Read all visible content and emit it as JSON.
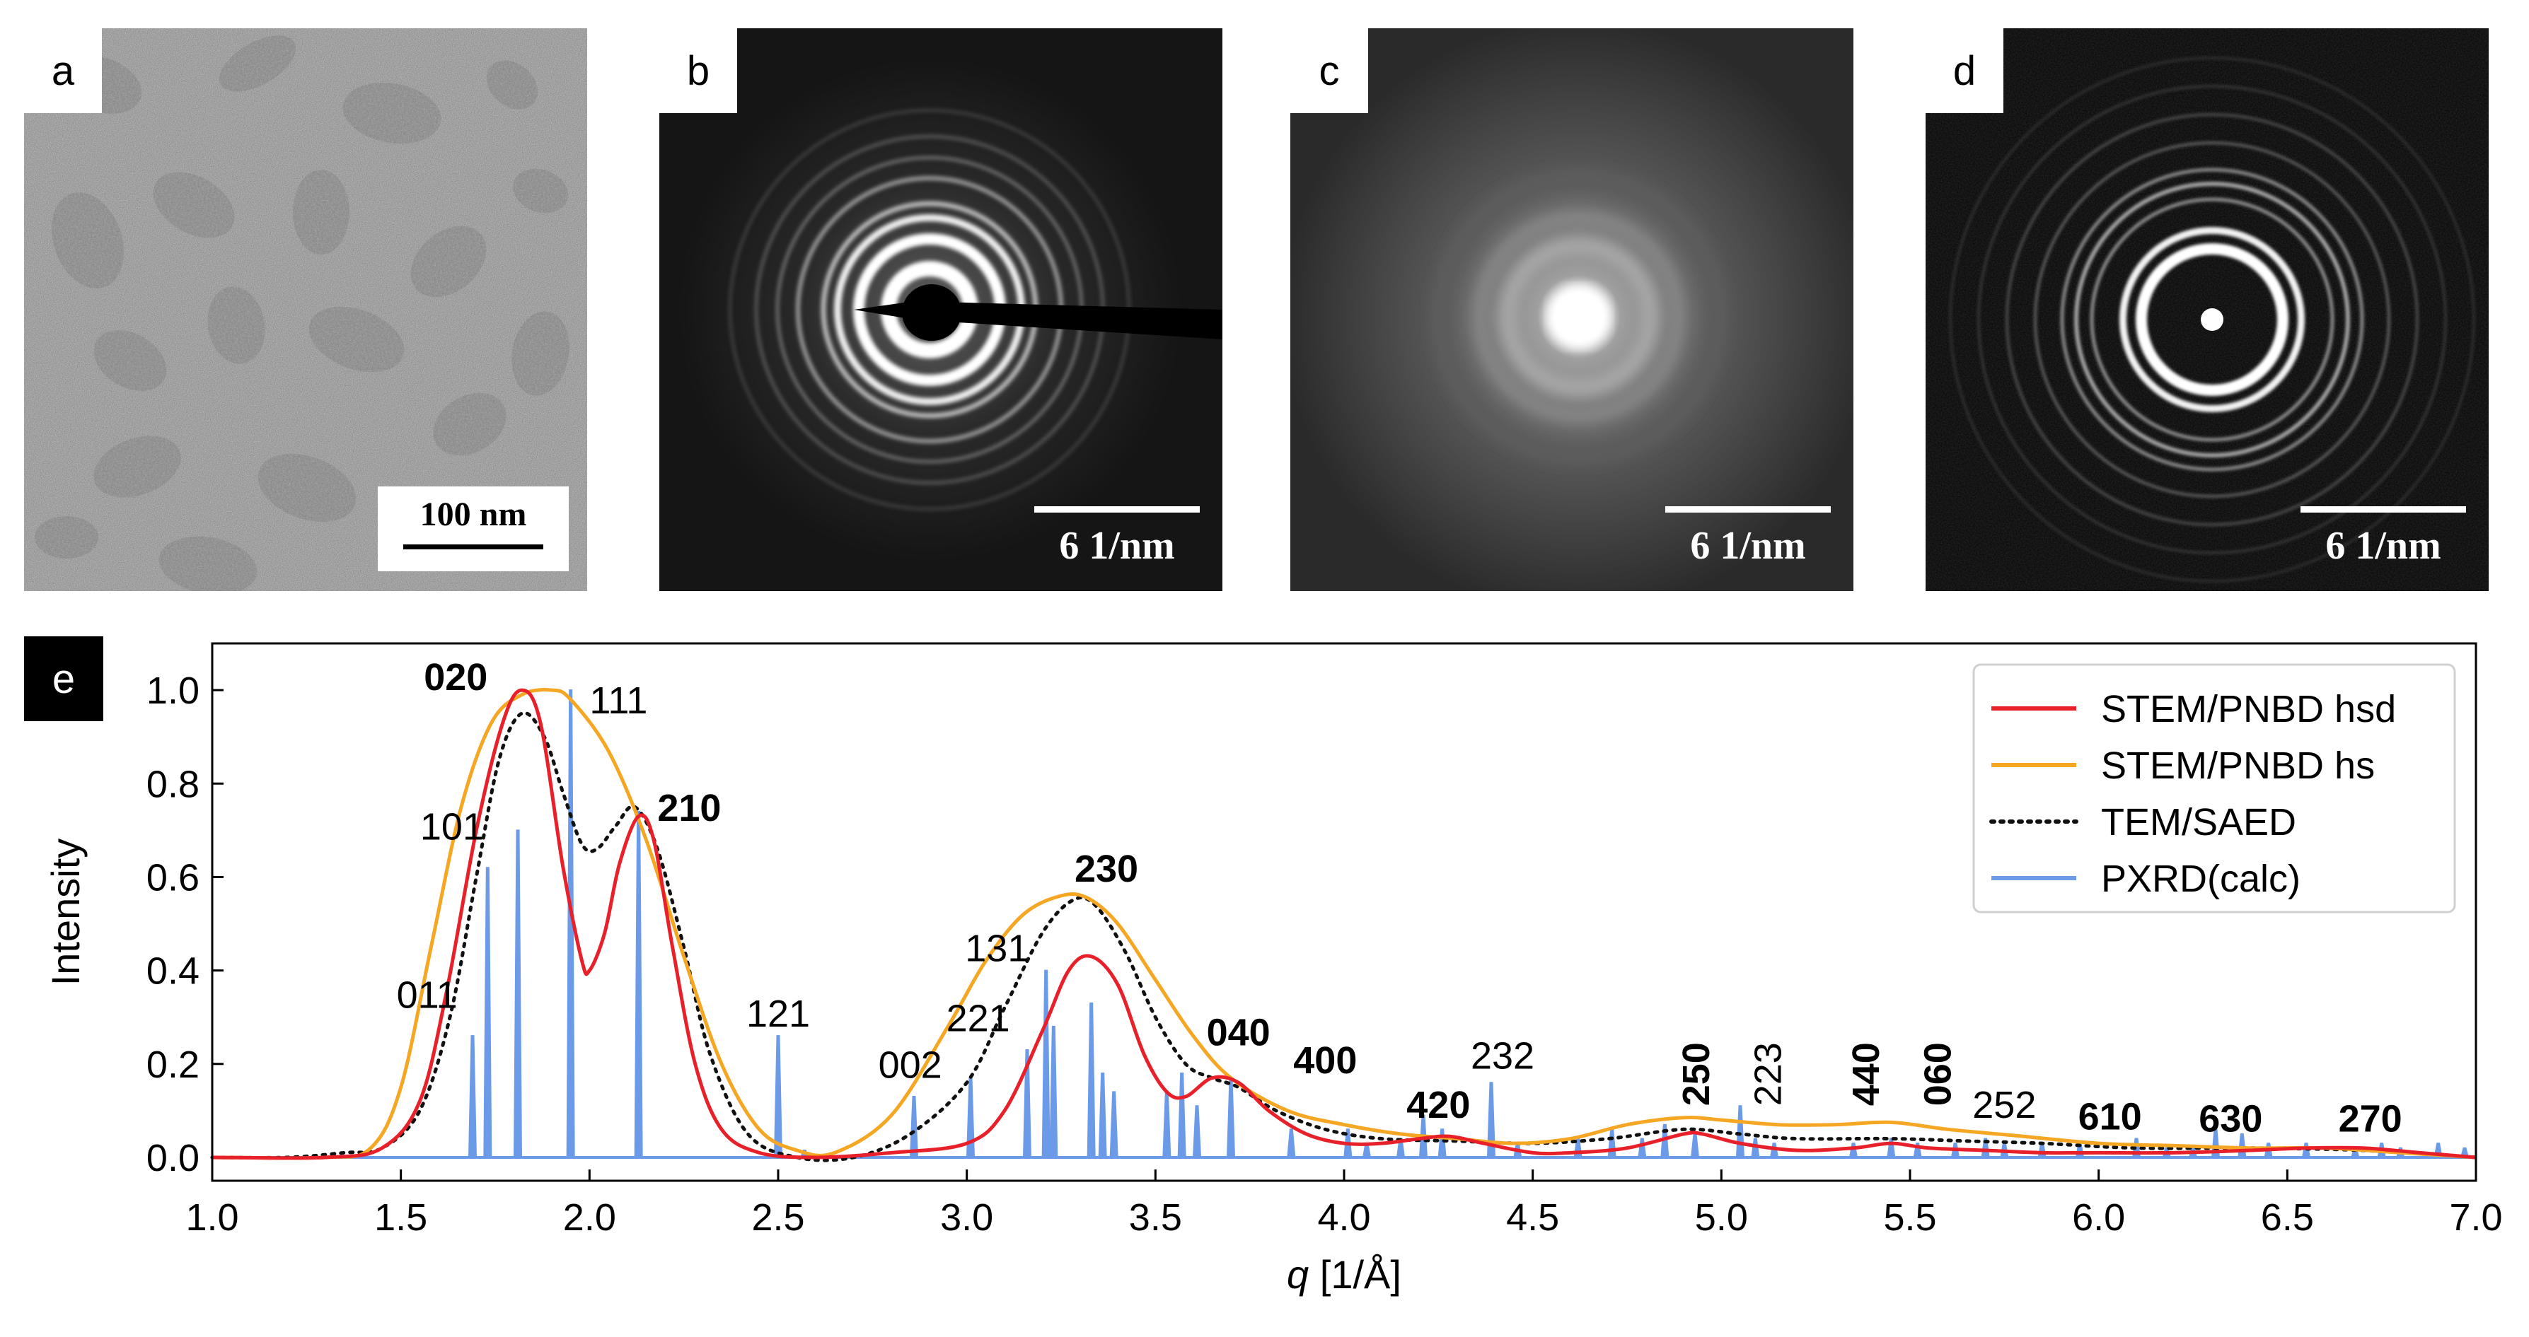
{
  "panels": {
    "a": {
      "label": "a",
      "scalebar": "100 nm"
    },
    "b": {
      "label": "b",
      "scalebar": "6 1/nm"
    },
    "c": {
      "label": "c",
      "scalebar": "6 1/nm"
    },
    "d": {
      "label": "d",
      "scalebar": "6 1/nm"
    },
    "e": {
      "label": "e"
    }
  },
  "chart_data": {
    "type": "line",
    "xlabel_italic": "q",
    "xlabel_rest": " [1/Å]",
    "ylabel": "Intensity",
    "xlim": [
      1.0,
      7.0
    ],
    "ylim": [
      -0.05,
      1.1
    ],
    "xticks": [
      "1.0",
      "1.5",
      "2.0",
      "2.5",
      "3.0",
      "3.5",
      "4.0",
      "4.5",
      "5.0",
      "5.5",
      "6.0",
      "6.5",
      "7.0"
    ],
    "yticks": [
      "0.0",
      "0.2",
      "0.4",
      "0.6",
      "0.8",
      "1.0"
    ],
    "series": [
      {
        "name": "STEM/PNBD hsd",
        "color": "#e8202a",
        "style": "solid",
        "points": [
          [
            1.0,
            0.0
          ],
          [
            1.3,
            0.0
          ],
          [
            1.45,
            0.02
          ],
          [
            1.55,
            0.12
          ],
          [
            1.62,
            0.35
          ],
          [
            1.7,
            0.7
          ],
          [
            1.77,
            0.93
          ],
          [
            1.82,
            1.0
          ],
          [
            1.87,
            0.93
          ],
          [
            1.93,
            0.62
          ],
          [
            1.98,
            0.42
          ],
          [
            2.0,
            0.4
          ],
          [
            2.04,
            0.48
          ],
          [
            2.08,
            0.63
          ],
          [
            2.13,
            0.73
          ],
          [
            2.17,
            0.68
          ],
          [
            2.22,
            0.45
          ],
          [
            2.28,
            0.2
          ],
          [
            2.35,
            0.06
          ],
          [
            2.45,
            0.01
          ],
          [
            2.6,
            0.0
          ],
          [
            2.8,
            0.01
          ],
          [
            3.0,
            0.03
          ],
          [
            3.1,
            0.1
          ],
          [
            3.2,
            0.27
          ],
          [
            3.27,
            0.4
          ],
          [
            3.33,
            0.43
          ],
          [
            3.4,
            0.37
          ],
          [
            3.47,
            0.22
          ],
          [
            3.53,
            0.14
          ],
          [
            3.58,
            0.13
          ],
          [
            3.65,
            0.17
          ],
          [
            3.72,
            0.16
          ],
          [
            3.8,
            0.1
          ],
          [
            3.9,
            0.05
          ],
          [
            4.0,
            0.03
          ],
          [
            4.1,
            0.03
          ],
          [
            4.2,
            0.04
          ],
          [
            4.28,
            0.045
          ],
          [
            4.37,
            0.03
          ],
          [
            4.5,
            0.01
          ],
          [
            4.6,
            0.01
          ],
          [
            4.75,
            0.02
          ],
          [
            4.9,
            0.05
          ],
          [
            4.95,
            0.05
          ],
          [
            5.05,
            0.03
          ],
          [
            5.2,
            0.015
          ],
          [
            5.35,
            0.02
          ],
          [
            5.45,
            0.03
          ],
          [
            5.55,
            0.02
          ],
          [
            5.7,
            0.015
          ],
          [
            5.85,
            0.01
          ],
          [
            6.0,
            0.01
          ],
          [
            6.2,
            0.01
          ],
          [
            6.4,
            0.015
          ],
          [
            6.55,
            0.02
          ],
          [
            6.7,
            0.02
          ],
          [
            6.85,
            0.01
          ],
          [
            7.0,
            0.0
          ]
        ]
      },
      {
        "name": "STEM/PNBD hs",
        "color": "#f5a623",
        "style": "solid",
        "points": [
          [
            1.0,
            0.0
          ],
          [
            1.3,
            0.0
          ],
          [
            1.42,
            0.02
          ],
          [
            1.5,
            0.15
          ],
          [
            1.58,
            0.45
          ],
          [
            1.66,
            0.75
          ],
          [
            1.74,
            0.93
          ],
          [
            1.82,
            0.99
          ],
          [
            1.9,
            1.0
          ],
          [
            1.95,
            0.98
          ],
          [
            2.05,
            0.87
          ],
          [
            2.15,
            0.68
          ],
          [
            2.25,
            0.43
          ],
          [
            2.35,
            0.2
          ],
          [
            2.45,
            0.06
          ],
          [
            2.55,
            0.015
          ],
          [
            2.65,
            0.01
          ],
          [
            2.8,
            0.09
          ],
          [
            2.95,
            0.28
          ],
          [
            3.05,
            0.42
          ],
          [
            3.15,
            0.52
          ],
          [
            3.25,
            0.56
          ],
          [
            3.32,
            0.555
          ],
          [
            3.4,
            0.5
          ],
          [
            3.5,
            0.38
          ],
          [
            3.6,
            0.26
          ],
          [
            3.7,
            0.17
          ],
          [
            3.85,
            0.1
          ],
          [
            4.0,
            0.07
          ],
          [
            4.15,
            0.05
          ],
          [
            4.3,
            0.04
          ],
          [
            4.45,
            0.03
          ],
          [
            4.6,
            0.04
          ],
          [
            4.75,
            0.07
          ],
          [
            4.9,
            0.085
          ],
          [
            5.0,
            0.08
          ],
          [
            5.15,
            0.07
          ],
          [
            5.3,
            0.07
          ],
          [
            5.45,
            0.075
          ],
          [
            5.6,
            0.06
          ],
          [
            5.8,
            0.045
          ],
          [
            6.0,
            0.03
          ],
          [
            6.2,
            0.025
          ],
          [
            6.4,
            0.02
          ],
          [
            6.6,
            0.02
          ],
          [
            6.8,
            0.01
          ],
          [
            7.0,
            0.0
          ]
        ]
      },
      {
        "name": "TEM/SAED",
        "color": "#111111",
        "style": "dotted",
        "points": [
          [
            1.0,
            0.0
          ],
          [
            1.2,
            0.0
          ],
          [
            1.35,
            0.01
          ],
          [
            1.45,
            0.02
          ],
          [
            1.55,
            0.1
          ],
          [
            1.63,
            0.3
          ],
          [
            1.7,
            0.6
          ],
          [
            1.76,
            0.85
          ],
          [
            1.82,
            0.95
          ],
          [
            1.88,
            0.9
          ],
          [
            1.93,
            0.78
          ],
          [
            1.98,
            0.67
          ],
          [
            2.02,
            0.66
          ],
          [
            2.07,
            0.71
          ],
          [
            2.12,
            0.75
          ],
          [
            2.18,
            0.66
          ],
          [
            2.25,
            0.45
          ],
          [
            2.32,
            0.22
          ],
          [
            2.42,
            0.05
          ],
          [
            2.55,
            0.0
          ],
          [
            2.7,
            0.0
          ],
          [
            2.85,
            0.05
          ],
          [
            3.0,
            0.16
          ],
          [
            3.1,
            0.32
          ],
          [
            3.2,
            0.48
          ],
          [
            3.28,
            0.55
          ],
          [
            3.34,
            0.54
          ],
          [
            3.42,
            0.44
          ],
          [
            3.5,
            0.3
          ],
          [
            3.58,
            0.2
          ],
          [
            3.65,
            0.17
          ],
          [
            3.72,
            0.15
          ],
          [
            3.82,
            0.1
          ],
          [
            3.95,
            0.06
          ],
          [
            4.1,
            0.04
          ],
          [
            4.3,
            0.035
          ],
          [
            4.5,
            0.03
          ],
          [
            4.7,
            0.04
          ],
          [
            4.9,
            0.06
          ],
          [
            5.05,
            0.05
          ],
          [
            5.2,
            0.04
          ],
          [
            5.45,
            0.04
          ],
          [
            5.65,
            0.035
          ],
          [
            5.85,
            0.03
          ],
          [
            6.1,
            0.02
          ],
          [
            6.4,
            0.02
          ],
          [
            6.7,
            0.015
          ],
          [
            7.0,
            0.0
          ]
        ]
      },
      {
        "name": "PXRD(calc)",
        "color": "#6b9ae8",
        "style": "solid",
        "peaks": [
          [
            1.69,
            0.26
          ],
          [
            1.73,
            0.62
          ],
          [
            1.81,
            0.7
          ],
          [
            1.95,
            1.0
          ],
          [
            2.13,
            0.74
          ],
          [
            2.5,
            0.26
          ],
          [
            2.57,
            0.015
          ],
          [
            2.86,
            0.13
          ],
          [
            3.01,
            0.17
          ],
          [
            3.16,
            0.23
          ],
          [
            3.21,
            0.4
          ],
          [
            3.23,
            0.28
          ],
          [
            3.33,
            0.33
          ],
          [
            3.36,
            0.18
          ],
          [
            3.39,
            0.14
          ],
          [
            3.53,
            0.14
          ],
          [
            3.57,
            0.18
          ],
          [
            3.61,
            0.11
          ],
          [
            3.7,
            0.17
          ],
          [
            3.86,
            0.06
          ],
          [
            4.01,
            0.06
          ],
          [
            4.06,
            0.03
          ],
          [
            4.15,
            0.04
          ],
          [
            4.21,
            0.09
          ],
          [
            4.26,
            0.06
          ],
          [
            4.39,
            0.16
          ],
          [
            4.46,
            0.03
          ],
          [
            4.62,
            0.04
          ],
          [
            4.71,
            0.06
          ],
          [
            4.79,
            0.04
          ],
          [
            4.85,
            0.07
          ],
          [
            4.93,
            0.05
          ],
          [
            5.05,
            0.11
          ],
          [
            5.09,
            0.04
          ],
          [
            5.14,
            0.03
          ],
          [
            5.35,
            0.03
          ],
          [
            5.45,
            0.04
          ],
          [
            5.52,
            0.03
          ],
          [
            5.62,
            0.03
          ],
          [
            5.7,
            0.04
          ],
          [
            5.75,
            0.03
          ],
          [
            5.85,
            0.03
          ],
          [
            5.95,
            0.03
          ],
          [
            6.1,
            0.04
          ],
          [
            6.18,
            0.02
          ],
          [
            6.25,
            0.02
          ],
          [
            6.31,
            0.06
          ],
          [
            6.38,
            0.05
          ],
          [
            6.45,
            0.03
          ],
          [
            6.55,
            0.03
          ],
          [
            6.68,
            0.02
          ],
          [
            6.75,
            0.03
          ],
          [
            6.8,
            0.02
          ],
          [
            6.9,
            0.03
          ],
          [
            6.97,
            0.02
          ]
        ]
      }
    ],
    "annotations": [
      {
        "text": "020",
        "bold": true,
        "x": 1.73,
        "y": 1.0,
        "anchor": "end"
      },
      {
        "text": "111",
        "bold": false,
        "x": 2.0,
        "y": 0.95,
        "anchor": "start"
      },
      {
        "text": "101",
        "bold": false,
        "x": 1.72,
        "y": 0.68,
        "anchor": "end"
      },
      {
        "text": "210",
        "bold": true,
        "x": 2.18,
        "y": 0.72,
        "anchor": "start"
      },
      {
        "text": "011",
        "bold": false,
        "x": 1.65,
        "y": 0.32,
        "anchor": "end"
      },
      {
        "text": "121",
        "bold": false,
        "x": 2.5,
        "y": 0.28,
        "anchor": "middle"
      },
      {
        "text": "002",
        "bold": false,
        "x": 2.85,
        "y": 0.17,
        "anchor": "middle"
      },
      {
        "text": "221",
        "bold": false,
        "x": 3.03,
        "y": 0.27,
        "anchor": "middle"
      },
      {
        "text": "131",
        "bold": false,
        "x": 3.08,
        "y": 0.42,
        "anchor": "middle"
      },
      {
        "text": "230",
        "bold": true,
        "x": 3.37,
        "y": 0.59,
        "anchor": "middle"
      },
      {
        "text": "040",
        "bold": true,
        "x": 3.72,
        "y": 0.24,
        "anchor": "middle"
      },
      {
        "text": "400",
        "bold": true,
        "x": 3.95,
        "y": 0.18,
        "anchor": "middle"
      },
      {
        "text": "420",
        "bold": true,
        "x": 4.25,
        "y": 0.085,
        "anchor": "middle"
      },
      {
        "text": "232",
        "bold": false,
        "x": 4.42,
        "y": 0.19,
        "anchor": "middle"
      },
      {
        "text": "252",
        "bold": false,
        "x": 5.75,
        "y": 0.085,
        "anchor": "middle"
      },
      {
        "text": "610",
        "bold": true,
        "x": 6.03,
        "y": 0.06,
        "anchor": "middle"
      },
      {
        "text": "630",
        "bold": true,
        "x": 6.35,
        "y": 0.055,
        "anchor": "middle"
      },
      {
        "text": "270",
        "bold": true,
        "x": 6.72,
        "y": 0.055,
        "anchor": "middle"
      },
      {
        "text": "250",
        "bold": true,
        "x": 4.93,
        "y": 0.11,
        "anchor": "start",
        "rotate": true
      },
      {
        "text": "223",
        "bold": false,
        "x": 5.12,
        "y": 0.11,
        "anchor": "start",
        "rotate": true
      },
      {
        "text": "440",
        "bold": true,
        "x": 5.38,
        "y": 0.11,
        "anchor": "start",
        "rotate": true
      },
      {
        "text": "060",
        "bold": true,
        "x": 5.57,
        "y": 0.11,
        "anchor": "start",
        "rotate": true
      }
    ],
    "legend_position": "top-right"
  }
}
